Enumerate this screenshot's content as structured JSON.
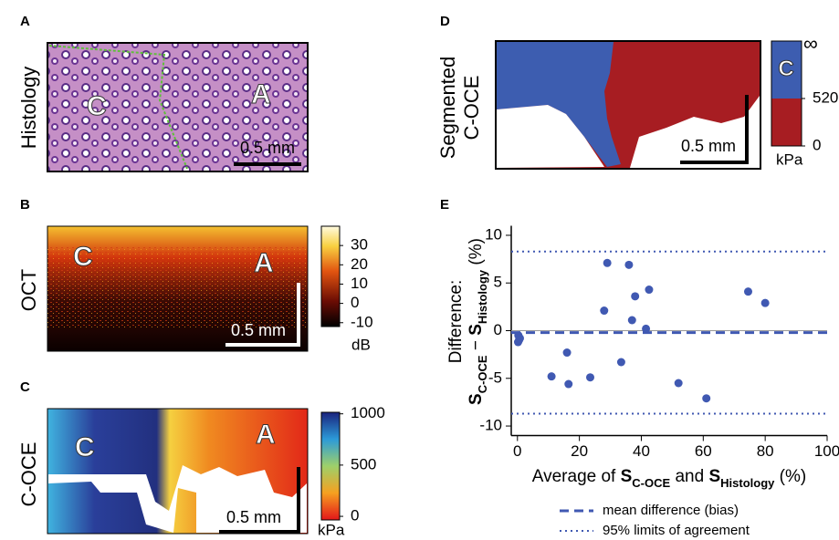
{
  "panels": [
    {
      "letter": "A",
      "side_label": [
        "Histology"
      ],
      "overlays": [
        "C",
        "A"
      ],
      "scale_bar": "0.5 mm"
    },
    {
      "letter": "B",
      "side_label": [
        "OCT"
      ],
      "overlays": [
        "C",
        "A"
      ],
      "scale_bar": "0.5 mm",
      "colorbar": {
        "unit": "dB",
        "lim": [
          -12,
          40
        ],
        "ticks": [
          30,
          20,
          10,
          0,
          -10
        ]
      }
    },
    {
      "letter": "C",
      "side_label": [
        "C-OCE"
      ],
      "overlays": [
        "C",
        "A"
      ],
      "scale_bar": "0.5 mm",
      "colorbar": {
        "unit": "kPa",
        "lim": [
          -35,
          1015
        ],
        "ticks": [
          1000,
          500,
          0
        ]
      }
    },
    {
      "letter": "D",
      "side_label": [
        "Segmented",
        "C-OCE"
      ],
      "scale_bar": "0.5 mm",
      "colorbar": {
        "unit": "kPa",
        "lim": [
          0,
          1150
        ],
        "ticks": [
          520,
          0
        ],
        "top_label": "∞",
        "region_label": "C"
      }
    }
  ],
  "chart_data": {
    "type": "scatter",
    "panel_label": "E",
    "x_label": [
      {
        "text": "Average of "
      },
      {
        "text": "S",
        "bold": true
      },
      {
        "text": "C-OCE",
        "bold": true,
        "sub": true
      },
      {
        "text": " and "
      },
      {
        "text": "S",
        "bold": true
      },
      {
        "text": "Histology",
        "bold": true,
        "sub": true
      },
      {
        "text": " (%)"
      }
    ],
    "y_label": [
      {
        "text": "Difference:"
      },
      {
        "text": "S",
        "bold": true,
        "newline": true
      },
      {
        "text": "C-OCE",
        "bold": true,
        "sub": true
      },
      {
        "text": " − "
      },
      {
        "text": "S",
        "bold": true
      },
      {
        "text": "Histology",
        "bold": true,
        "sub": true
      },
      {
        "text": " (%)"
      }
    ],
    "x": [
      0.3,
      0.5,
      0.2,
      0.8,
      11,
      16,
      16.5,
      23.5,
      28,
      29,
      33.5,
      36,
      37,
      38,
      41.5,
      42.5,
      52,
      61,
      74.5,
      80
    ],
    "values": [
      -0.5,
      -1.0,
      -1.2,
      -0.8,
      -4.8,
      -2.3,
      -5.6,
      -4.9,
      2.1,
      7.1,
      -3.3,
      6.9,
      1.1,
      3.6,
      0.2,
      4.3,
      -5.5,
      -7.1,
      4.1,
      2.9
    ],
    "color": "#4059b2",
    "xlim": [
      -2,
      100
    ],
    "xticks": [
      0,
      20,
      40,
      60,
      80,
      100
    ],
    "ylim": [
      -11,
      11
    ],
    "yticks": [
      -10,
      -5,
      0,
      5,
      10
    ],
    "zero_line": true,
    "reference_lines": [
      {
        "name": "mean difference (bias)",
        "value": -0.2,
        "style": "dashed"
      },
      {
        "name": "95% limits of agreement",
        "value": 8.3,
        "style": "dotted"
      },
      {
        "value": -8.7,
        "style": "dotted"
      }
    ]
  }
}
